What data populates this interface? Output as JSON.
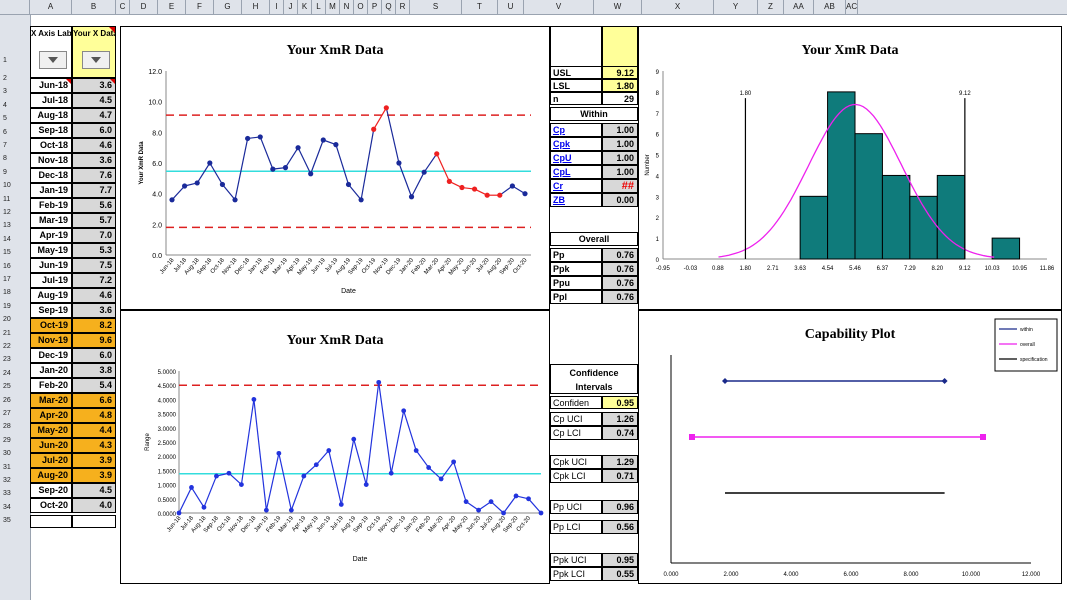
{
  "columns": [
    "A",
    "B",
    "C",
    "D",
    "E",
    "F",
    "G",
    "H",
    "I",
    "J",
    "K",
    "L",
    "M",
    "N",
    "O",
    "P",
    "Q",
    "R",
    "S",
    "T",
    "U",
    "V",
    "W",
    "X",
    "Y",
    "Z",
    "AA",
    "AB",
    "AC"
  ],
  "rows": [
    "1",
    "2",
    "3",
    "4",
    "5",
    "6",
    "7",
    "8",
    "9",
    "10",
    "11",
    "12",
    "13",
    "14",
    "15",
    "16",
    "17",
    "18",
    "19",
    "20",
    "21",
    "22",
    "23",
    "24",
    "25",
    "26",
    "27",
    "28",
    "29",
    "30",
    "31",
    "32",
    "33",
    "34",
    "35"
  ],
  "headers": {
    "x_axis": "X Axis Label",
    "y_val": "Your X Data"
  },
  "data_rows": [
    {
      "date": "Jun-18",
      "value": "3.6",
      "hl": false
    },
    {
      "date": "Jul-18",
      "value": "4.5",
      "hl": false
    },
    {
      "date": "Aug-18",
      "value": "4.7",
      "hl": false
    },
    {
      "date": "Sep-18",
      "value": "6.0",
      "hl": false
    },
    {
      "date": "Oct-18",
      "value": "4.6",
      "hl": false
    },
    {
      "date": "Nov-18",
      "value": "3.6",
      "hl": false
    },
    {
      "date": "Dec-18",
      "value": "7.6",
      "hl": false
    },
    {
      "date": "Jan-19",
      "value": "7.7",
      "hl": false
    },
    {
      "date": "Feb-19",
      "value": "5.6",
      "hl": false
    },
    {
      "date": "Mar-19",
      "value": "5.7",
      "hl": false
    },
    {
      "date": "Apr-19",
      "value": "7.0",
      "hl": false
    },
    {
      "date": "May-19",
      "value": "5.3",
      "hl": false
    },
    {
      "date": "Jun-19",
      "value": "7.5",
      "hl": false
    },
    {
      "date": "Jul-19",
      "value": "7.2",
      "hl": false
    },
    {
      "date": "Aug-19",
      "value": "4.6",
      "hl": false
    },
    {
      "date": "Sep-19",
      "value": "3.6",
      "hl": false
    },
    {
      "date": "Oct-19",
      "value": "8.2",
      "hl": true
    },
    {
      "date": "Nov-19",
      "value": "9.6",
      "hl": true
    },
    {
      "date": "Dec-19",
      "value": "6.0",
      "hl": false
    },
    {
      "date": "Jan-20",
      "value": "3.8",
      "hl": false
    },
    {
      "date": "Feb-20",
      "value": "5.4",
      "hl": false
    },
    {
      "date": "Mar-20",
      "value": "6.6",
      "hl": true
    },
    {
      "date": "Apr-20",
      "value": "4.8",
      "hl": true
    },
    {
      "date": "May-20",
      "value": "4.4",
      "hl": true
    },
    {
      "date": "Jun-20",
      "value": "4.3",
      "hl": true
    },
    {
      "date": "Jul-20",
      "value": "3.9",
      "hl": true
    },
    {
      "date": "Aug-20",
      "value": "3.9",
      "hl": true
    },
    {
      "date": "Sep-20",
      "value": "4.5",
      "hl": false
    },
    {
      "date": "Oct-20",
      "value": "4.0",
      "hl": false
    }
  ],
  "stats": {
    "usl_label": "USL",
    "usl": "9.12",
    "lsl_label": "LSL",
    "lsl": "1.80",
    "n_label": "n",
    "n": "29",
    "within_label": "Within",
    "within": [
      {
        "label": "Cp",
        "value": "1.00"
      },
      {
        "label": "Cpk",
        "value": "1.00"
      },
      {
        "label": "CpU",
        "value": "1.00"
      },
      {
        "label": "CpL",
        "value": "1.00"
      },
      {
        "label": "Cr",
        "value": "##"
      },
      {
        "label": "ZB",
        "value": "0.00"
      }
    ],
    "overall_label": "Overall",
    "overall": [
      {
        "label": "Pp",
        "value": "0.76"
      },
      {
        "label": "Ppk",
        "value": "0.76"
      },
      {
        "label": "Ppu",
        "value": "0.76"
      },
      {
        "label": "Ppl",
        "value": "0.76"
      }
    ],
    "ci_label": "Confidence Intervals",
    "confidence": {
      "label": "Confiden",
      "value": "0.95"
    },
    "cp_ci": [
      {
        "label": "Cp UCI",
        "value": "1.26"
      },
      {
        "label": "Cp LCI",
        "value": "0.74"
      }
    ],
    "cpk_ci": [
      {
        "label": "Cpk UCI",
        "value": "1.29"
      },
      {
        "label": "Cpk LCI",
        "value": "0.71"
      }
    ],
    "pp_ci": [
      {
        "label": "Pp UCI",
        "value": "0.96"
      },
      {
        "label": "Pp LCI",
        "value": "0.56"
      }
    ],
    "ppk_ci": [
      {
        "label": "Ppk UCI",
        "value": "0.95"
      },
      {
        "label": "Ppk LCI",
        "value": "0.55"
      }
    ]
  },
  "chart_data": [
    {
      "type": "line",
      "title": "Your XmR Data",
      "xlabel": "Date",
      "ylabel": "Your XmR Data",
      "x": [
        "Jun-18",
        "Jul-18",
        "Aug-18",
        "Sep-18",
        "Oct-18",
        "Nov-18",
        "Dec-18",
        "Jan-19",
        "Feb-19",
        "Mar-19",
        "Apr-19",
        "May-19",
        "Jun-19",
        "Jul-19",
        "Aug-19",
        "Sep-19",
        "Oct-19",
        "Nov-19",
        "Dec-19",
        "Jan-20",
        "Feb-20",
        "Mar-20",
        "Apr-20",
        "May-20",
        "Jun-20",
        "Jul-20",
        "Aug-20",
        "Sep-20",
        "Oct-20"
      ],
      "values": [
        3.6,
        4.5,
        4.7,
        6.0,
        4.6,
        3.6,
        7.6,
        7.7,
        5.6,
        5.7,
        7.0,
        5.3,
        7.5,
        7.2,
        4.6,
        3.6,
        8.2,
        9.6,
        6.0,
        3.8,
        5.4,
        6.6,
        4.8,
        4.4,
        4.3,
        3.9,
        3.9,
        4.5,
        4.0
      ],
      "signal_points": [
        16,
        17,
        21,
        22,
        23,
        24,
        25,
        26
      ],
      "center_line": 5.46,
      "ucl": 9.12,
      "lcl": 1.8,
      "ylim": [
        0,
        12
      ],
      "yticks": [
        "0.0",
        "2.0",
        "4.0",
        "6.0",
        "8.0",
        "10.0",
        "12.0"
      ],
      "colors": {
        "line": "#1a2a9a",
        "signal": "#ee2020",
        "center": "#33dddd",
        "limits": "#dd2020"
      }
    },
    {
      "type": "line",
      "title": "Your XmR Data",
      "xlabel": "Date",
      "ylabel": "Range",
      "x": [
        "Jun-18",
        "Jul-18",
        "Aug-18",
        "Sep-18",
        "Oct-18",
        "Nov-18",
        "Dec-18",
        "Jan-19",
        "Feb-19",
        "Mar-19",
        "Apr-19",
        "May-19",
        "Jun-19",
        "Jul-19",
        "Aug-19",
        "Sep-19",
        "Oct-19",
        "Nov-19",
        "Dec-19",
        "Jan-20",
        "Feb-20",
        "Mar-20",
        "Apr-20",
        "May-20",
        "Jun-20",
        "Jul-20",
        "Aug-20",
        "Sep-20",
        "Oct-20",
        "Nov-20"
      ],
      "values": [
        0,
        0.9,
        0.2,
        1.3,
        1.4,
        1.0,
        4.0,
        0.1,
        2.1,
        0.1,
        1.3,
        1.7,
        2.2,
        0.3,
        2.6,
        1.0,
        4.6,
        1.4,
        3.6,
        2.2,
        1.6,
        1.2,
        1.8,
        0.4,
        0.1,
        0.4,
        0,
        0.6,
        0.5,
        0
      ],
      "center_line": 1.38,
      "ucl": 4.5,
      "ylim": [
        0,
        5
      ],
      "yticks": [
        "0.0000",
        "0.5000",
        "1.0000",
        "1.5000",
        "2.0000",
        "2.5000",
        "3.0000",
        "3.5000",
        "4.0000",
        "4.5000",
        "5.0000"
      ],
      "colors": {
        "line": "#2233dd",
        "center": "#33dddd",
        "limits": "#dd2020"
      }
    },
    {
      "type": "bar",
      "title": "Your XmR Data",
      "ylabel": "Number",
      "bins": [
        "-0.95",
        "-0.03",
        "0.88",
        "1.80",
        "2.71",
        "3.63",
        "4.54",
        "5.46",
        "6.37",
        "7.29",
        "8.20",
        "9.12",
        "10.03",
        "10.95",
        "11.86"
      ],
      "counts": [
        0,
        0,
        0,
        0,
        0,
        3,
        8,
        6,
        4,
        3,
        4,
        0,
        1,
        0
      ],
      "lsl": 1.8,
      "usl": 9.12,
      "lsl_label": "1.80",
      "usl_label": "9.12",
      "ylim": [
        0,
        9
      ],
      "yticks": [
        "0",
        "1",
        "2",
        "3",
        "4",
        "5",
        "6",
        "7",
        "8",
        "9"
      ],
      "colors": {
        "bars": "#0f7b7b",
        "curve": "#ee22ee"
      }
    },
    {
      "type": "line",
      "title": "Capability Plot",
      "xlim": [
        0,
        12
      ],
      "xticks": [
        "0.000",
        "2.000",
        "4.000",
        "6.000",
        "8.000",
        "10.000",
        "12.000"
      ],
      "series": [
        {
          "name": "within",
          "from": 1.8,
          "to": 9.12,
          "color": "#1a2a8a"
        },
        {
          "name": "overall",
          "from": 0.7,
          "to": 10.4,
          "color": "#ee22ee"
        },
        {
          "name": "specification",
          "from": 1.8,
          "to": 9.12,
          "color": "#000000"
        }
      ]
    }
  ]
}
